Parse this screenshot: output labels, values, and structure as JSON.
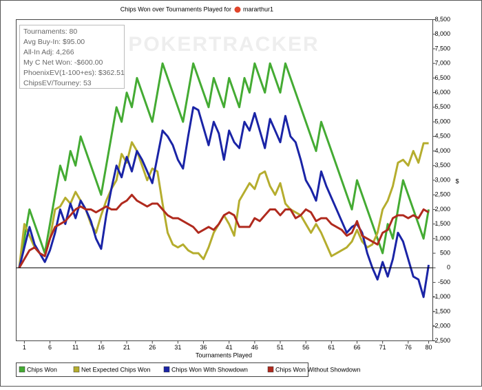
{
  "chart_data": {
    "type": "line",
    "title": "Chips Won over Tournaments Played for",
    "player": "mararthur1",
    "watermark": "POKERTRACKER",
    "x_label": "Tournaments Played",
    "y_label": "$",
    "info_box": [
      "Tournaments: 80",
      "Avg Buy-In: $95.00",
      "All-In Adj: 4,266",
      "My C Net Won: -$600.00",
      "PhoenixEV(1-100+es): $362.51",
      "ChipsEV/Tourney: 53"
    ],
    "x": [
      0,
      1,
      2,
      3,
      4,
      5,
      6,
      7,
      8,
      9,
      10,
      11,
      12,
      13,
      14,
      15,
      16,
      17,
      18,
      19,
      20,
      21,
      22,
      23,
      24,
      25,
      26,
      27,
      28,
      29,
      30,
      31,
      32,
      33,
      34,
      35,
      36,
      37,
      38,
      39,
      40,
      41,
      42,
      43,
      44,
      45,
      46,
      47,
      48,
      49,
      50,
      51,
      52,
      53,
      54,
      55,
      56,
      57,
      58,
      59,
      60,
      61,
      62,
      63,
      64,
      65,
      66,
      67,
      68,
      69,
      70,
      71,
      72,
      73,
      74,
      75,
      76,
      77,
      78,
      79,
      80
    ],
    "xlim": [
      -0.6,
      80.8
    ],
    "xticks": [
      1,
      6,
      11,
      16,
      21,
      26,
      31,
      36,
      41,
      46,
      51,
      56,
      61,
      66,
      71,
      76,
      80
    ],
    "ylim": [
      -2500,
      8500
    ],
    "yticks": [
      {
        "value": -2500,
        "label": "-2,500"
      },
      {
        "value": -2000,
        "label": "-2,000"
      },
      {
        "value": -1500,
        "label": "-1,500"
      },
      {
        "value": -1000,
        "label": "-1,000"
      },
      -500,
      0,
      500,
      {
        "value": 1000,
        "label": "1,000"
      },
      {
        "value": 1500,
        "label": "1,500"
      },
      {
        "value": 2000,
        "label": "2,000"
      },
      {
        "value": 2500,
        "label": "2,500"
      },
      {
        "value": 3000,
        "label": "3,000"
      },
      {
        "value": 3500,
        "label": "3,500"
      },
      {
        "value": 4000,
        "label": "4,000"
      },
      {
        "value": 4500,
        "label": "4,500"
      },
      {
        "value": 5000,
        "label": "5,000"
      },
      {
        "value": 5500,
        "label": "5,500"
      },
      {
        "value": 6000,
        "label": "6,000"
      },
      {
        "value": 6500,
        "label": "6,500"
      },
      {
        "value": 7000,
        "label": "7,000"
      },
      {
        "value": 7500,
        "label": "7,500"
      },
      {
        "value": 8000,
        "label": "8,000"
      },
      {
        "value": 8500,
        "label": "8,500"
      }
    ],
    "zero_line": true,
    "series": [
      {
        "name": "Chips Won",
        "color": "#44ab33",
        "values": [
          0,
          1000,
          2000,
          1500,
          1000,
          500,
          1500,
          2500,
          3500,
          3000,
          4000,
          3500,
          4500,
          4000,
          3500,
          3000,
          2500,
          3500,
          4500,
          5500,
          5000,
          6000,
          5500,
          6500,
          6000,
          5500,
          5000,
          6000,
          7000,
          6500,
          6000,
          5500,
          5000,
          6000,
          7000,
          6500,
          6000,
          5500,
          6500,
          6000,
          5500,
          6500,
          6000,
          5500,
          6500,
          6000,
          7000,
          6500,
          6000,
          7000,
          6500,
          6000,
          7000,
          6500,
          6000,
          5500,
          5000,
          4500,
          4000,
          5000,
          4500,
          4000,
          3500,
          3000,
          2500,
          2000,
          3000,
          2500,
          2000,
          1500,
          1000,
          500,
          1500,
          1000,
          2000,
          3000,
          2500,
          2000,
          1500,
          1000,
          2000
        ]
      },
      {
        "name": "Net Expected Chips Won",
        "color": "#b5ad2e",
        "values": [
          0,
          1500,
          1100,
          700,
          500,
          400,
          1000,
          2000,
          2100,
          2400,
          2200,
          2600,
          2300,
          2000,
          1500,
          1200,
          1800,
          2300,
          2700,
          3000,
          3900,
          3600,
          4300,
          4000,
          3500,
          3000,
          3400,
          3300,
          2200,
          1200,
          800,
          700,
          800,
          600,
          500,
          500,
          300,
          700,
          1200,
          1500,
          1800,
          1500,
          1100,
          2300,
          2600,
          2900,
          2700,
          3200,
          3300,
          2800,
          2500,
          2900,
          2200,
          2000,
          1900,
          1800,
          1500,
          1200,
          1500,
          1200,
          800,
          400,
          500,
          600,
          700,
          900,
          1300,
          900,
          700,
          800,
          1200,
          2000,
          2300,
          2800,
          3600,
          3700,
          3500,
          4000,
          3600,
          4266,
          4266
        ]
      },
      {
        "name": "Chips Won With Showdown",
        "color": "#1a24a6",
        "values": [
          0,
          700,
          1400,
          800,
          500,
          200,
          600,
          1200,
          2000,
          1500,
          2200,
          1700,
          2300,
          2000,
          1600,
          1000,
          650,
          1800,
          2700,
          3500,
          3100,
          3800,
          3300,
          4000,
          3700,
          3300,
          2900,
          3800,
          4700,
          4500,
          4200,
          3700,
          3400,
          4500,
          5500,
          5400,
          4800,
          4200,
          5000,
          4600,
          3700,
          4700,
          4300,
          4100,
          5000,
          4700,
          5300,
          4700,
          4100,
          5100,
          4700,
          4300,
          5200,
          4500,
          4300,
          3700,
          3000,
          2700,
          2300,
          3300,
          2800,
          2400,
          2000,
          1600,
          1200,
          1400,
          1500,
          1200,
          500,
          0,
          -400,
          200,
          -300,
          300,
          1200,
          900,
          300,
          -300,
          -400,
          -1000,
          100
        ]
      },
      {
        "name": "Chips Won Without Showdown",
        "color": "#b02a1e",
        "values": [
          0,
          300,
          600,
          700,
          500,
          400,
          1000,
          1400,
          1500,
          1600,
          1800,
          2000,
          2100,
          2000,
          2000,
          1900,
          2000,
          2100,
          2000,
          2000,
          2200,
          2300,
          2500,
          2300,
          2200,
          2100,
          2200,
          2200,
          2000,
          1800,
          1700,
          1700,
          1600,
          1500,
          1400,
          1200,
          1300,
          1400,
          1300,
          1500,
          1800,
          1900,
          1800,
          1400,
          1400,
          1400,
          1700,
          1600,
          1800,
          2000,
          2000,
          1800,
          2000,
          2000,
          1700,
          1800,
          2000,
          1900,
          1600,
          1700,
          1700,
          1500,
          1400,
          1300,
          1100,
          1200,
          1600,
          1100,
          1000,
          900,
          800,
          1200,
          1300,
          1700,
          1800,
          1800,
          1700,
          1800,
          1700,
          2000,
          1900
        ]
      }
    ]
  }
}
